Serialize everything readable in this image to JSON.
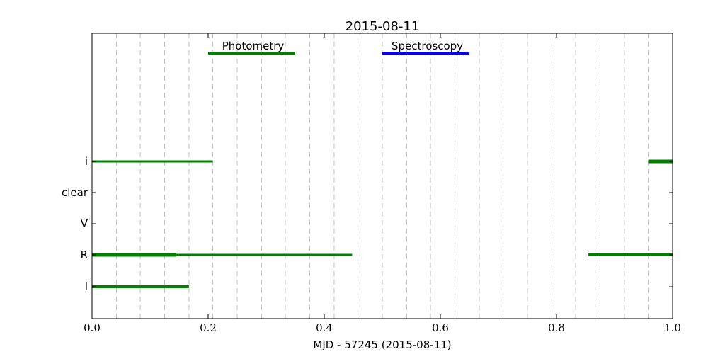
{
  "chart_data": {
    "type": "timeline",
    "title": "2015-08-11",
    "xlabel": "MJD - 57245 (2015-08-11)",
    "ylabel": "",
    "xlim": [
      0.0,
      1.0
    ],
    "x_ticks": [
      0.0,
      0.2,
      0.4,
      0.6,
      0.8,
      1.0
    ],
    "x_tick_labels": [
      "0.0",
      "0.2",
      "0.4",
      "0.6",
      "0.8",
      "1.0"
    ],
    "categories": [
      "i",
      "clear",
      "V",
      "R",
      "I"
    ],
    "grid": "vertical dashed",
    "vlines": [
      0.042,
      0.083,
      0.125,
      0.167,
      0.208,
      0.25,
      0.292,
      0.333,
      0.375,
      0.417,
      0.458,
      0.5,
      0.542,
      0.583,
      0.625,
      0.667,
      0.708,
      0.75,
      0.792,
      0.833,
      0.875,
      0.917,
      0.958
    ],
    "colors": {
      "photometry": "#008000",
      "spectroscopy": "#0000ff",
      "grid": "#c0c0c0"
    },
    "segments": [
      {
        "category": "i",
        "start": 0.0,
        "end": 0.208,
        "color": "#008000",
        "weight": 3
      },
      {
        "category": "i",
        "start": 0.958,
        "end": 1.0,
        "color": "#008000",
        "weight": 5
      },
      {
        "category": "R",
        "start": 0.0,
        "end": 0.448,
        "color": "#008000",
        "weight": 3
      },
      {
        "category": "R",
        "start": 0.0,
        "end": 0.145,
        "color": "#008000",
        "weight": 5
      },
      {
        "category": "R",
        "start": 0.855,
        "end": 1.0,
        "color": "#008000",
        "weight": 4
      },
      {
        "category": "I",
        "start": 0.0,
        "end": 0.167,
        "color": "#008000",
        "weight": 4
      }
    ],
    "annotations": [
      {
        "label": "Photometry",
        "start": 0.2,
        "end": 0.35,
        "color": "#008000"
      },
      {
        "label": "Spectroscopy",
        "start": 0.5,
        "end": 0.65,
        "color": "#0000ff"
      }
    ]
  }
}
